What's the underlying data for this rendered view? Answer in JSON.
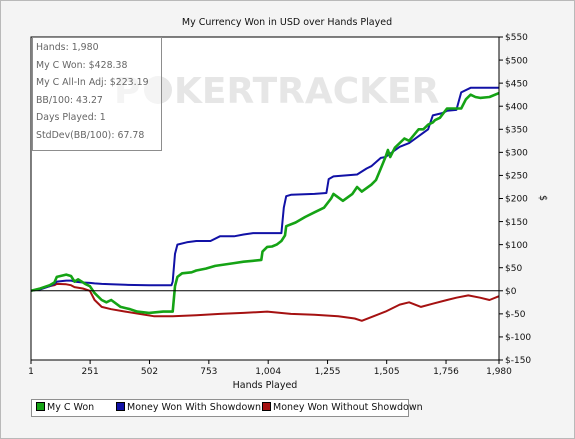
{
  "chart_data": {
    "type": "line",
    "title": "My Currency Won in USD over Hands Played",
    "xlabel": "Hands Played",
    "ylabel": "$",
    "xlim": [
      1,
      1980
    ],
    "ylim": [
      -150,
      550
    ],
    "x_ticks": [
      1,
      251,
      502,
      753,
      1004,
      1255,
      1505,
      1756,
      1980
    ],
    "x_tick_labels": [
      "1",
      "251",
      "502",
      "753",
      "1,004",
      "1,255",
      "1,505",
      "1,756",
      "1,980"
    ],
    "y_ticks": [
      -150,
      -100,
      -50,
      0,
      50,
      100,
      150,
      200,
      250,
      300,
      350,
      400,
      450,
      500,
      550
    ],
    "y_tick_labels": [
      "$-150",
      "$-100",
      "$-50",
      "$0",
      "$50",
      "$100",
      "$150",
      "$200",
      "$250",
      "$300",
      "$350",
      "$400",
      "$450",
      "$500",
      "$550"
    ],
    "grid": false,
    "legend_position": "bottom",
    "series": [
      {
        "name": "My C Won",
        "color": "#15a315",
        "x": [
          1,
          40,
          80,
          100,
          110,
          150,
          170,
          185,
          200,
          230,
          250,
          270,
          300,
          320,
          340,
          380,
          420,
          450,
          500,
          560,
          590,
          600,
          610,
          620,
          640,
          680,
          700,
          740,
          780,
          820,
          860,
          900,
          940,
          975,
          980,
          1000,
          1020,
          1040,
          1060,
          1075,
          1080,
          1120,
          1160,
          1200,
          1240,
          1270,
          1280,
          1320,
          1360,
          1380,
          1400,
          1440,
          1460,
          1480,
          1500,
          1510,
          1520,
          1540,
          1580,
          1600,
          1640,
          1660,
          1680,
          1700,
          1710,
          1730,
          1760,
          1800,
          1820,
          1840,
          1860,
          1880,
          1900,
          1940,
          1980
        ],
        "values": [
          0,
          5,
          12,
          18,
          30,
          35,
          32,
          20,
          25,
          15,
          10,
          -5,
          -20,
          -25,
          -20,
          -35,
          -40,
          -45,
          -48,
          -45,
          -45,
          -45,
          10,
          30,
          38,
          40,
          44,
          48,
          54,
          57,
          60,
          63,
          65,
          67,
          85,
          95,
          96,
          100,
          108,
          120,
          140,
          148,
          160,
          170,
          180,
          200,
          210,
          195,
          210,
          225,
          215,
          230,
          240,
          265,
          290,
          305,
          290,
          310,
          330,
          325,
          350,
          350,
          360,
          365,
          370,
          375,
          395,
          395,
          395,
          415,
          425,
          420,
          418,
          420,
          428.38
        ]
      },
      {
        "name": "Money Won With Showdown",
        "color": "#1111a6",
        "x": [
          1,
          40,
          80,
          100,
          110,
          150,
          170,
          185,
          220,
          250,
          270,
          300,
          340,
          400,
          500,
          595,
          600,
          610,
          620,
          660,
          700,
          760,
          800,
          860,
          900,
          940,
          980,
          1060,
          1070,
          1080,
          1100,
          1200,
          1250,
          1260,
          1280,
          1380,
          1420,
          1440,
          1480,
          1500,
          1560,
          1600,
          1640,
          1680,
          1700,
          1740,
          1760,
          1800,
          1820,
          1860,
          1980
        ],
        "values": [
          0,
          3,
          10,
          15,
          20,
          22,
          22,
          20,
          18,
          17,
          16,
          15,
          14,
          13,
          12,
          12,
          20,
          80,
          100,
          105,
          108,
          108,
          118,
          118,
          122,
          125,
          125,
          125,
          180,
          205,
          208,
          210,
          212,
          242,
          248,
          252,
          265,
          270,
          288,
          290,
          312,
          320,
          335,
          350,
          380,
          385,
          390,
          392,
          430,
          440,
          440
        ]
      },
      {
        "name": "Money Won Without Showdown",
        "color": "#a51111",
        "x": [
          1,
          40,
          80,
          100,
          110,
          150,
          170,
          185,
          220,
          250,
          270,
          300,
          340,
          400,
          460,
          520,
          600,
          700,
          800,
          900,
          1000,
          1100,
          1200,
          1300,
          1370,
          1400,
          1450,
          1500,
          1560,
          1600,
          1650,
          1700,
          1760,
          1800,
          1850,
          1900,
          1940,
          1980
        ],
        "values": [
          0,
          5,
          10,
          12,
          15,
          14,
          12,
          8,
          5,
          0,
          -20,
          -35,
          -40,
          -45,
          -50,
          -55,
          -55,
          -53,
          -50,
          -48,
          -45,
          -50,
          -52,
          -55,
          -60,
          -65,
          -55,
          -45,
          -30,
          -25,
          -35,
          -28,
          -20,
          -15,
          -10,
          -15,
          -20,
          -11.8
        ]
      }
    ]
  },
  "stats": {
    "hands": "Hands: 1,980",
    "won": "My C Won: $428.38",
    "all_in_adj": "My C All-In Adj: $223.19",
    "bb100": "BB/100: 43.27",
    "days_played": "Days Played: 1",
    "stddev": "StdDev(BB/100): 67.78"
  },
  "watermark": {
    "left": "P",
    "right": "KERTRACKER",
    "color": "#e6e6e6"
  }
}
